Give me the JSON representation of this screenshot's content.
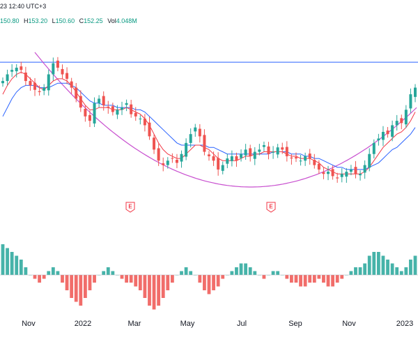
{
  "header": {
    "datetime_fragment": "23 12:40 UTC+3"
  },
  "ohlc": {
    "open_label": "",
    "open": "150.80",
    "high_label": "H",
    "high": "153.20",
    "low_label": "L",
    "low": "150.60",
    "close_label": "C",
    "close": "152.25",
    "vol_label": "Vol",
    "vol": "4.048M"
  },
  "colors": {
    "up": "#26a69a",
    "down": "#ef5350",
    "ma_fast": "#f23645",
    "ma_slow": "#2962ff",
    "arc": "#c84fcf",
    "hline": "#2962ff",
    "osc_pos": "#26a69a",
    "osc_neg": "#ef5350"
  },
  "chart_data": [
    {
      "type": "candlestick",
      "title": "",
      "x_axis_labels": [
        "Nov",
        "2022",
        "Mar",
        "May",
        "Jul",
        "Sep",
        "Nov",
        "2023"
      ],
      "earnings_markers": [
        "E",
        "E"
      ],
      "description_series": [
        {
          "name": "",
          "role": "price",
          "values": [
            128,
            131,
            133,
            134,
            133,
            128,
            126,
            124,
            123,
            125,
            131,
            136,
            134,
            131,
            129,
            125,
            120,
            116,
            112,
            110,
            118,
            120,
            117,
            116,
            114,
            115,
            116,
            118,
            113,
            112,
            111,
            108,
            103,
            97,
            92,
            90,
            92,
            93,
            91,
            95,
            100,
            104,
            107,
            103,
            96,
            94,
            92,
            88,
            90,
            93,
            94,
            92,
            95,
            97,
            94,
            96,
            97,
            99,
            95,
            96,
            98,
            97,
            94,
            93,
            93,
            92,
            94,
            93,
            90,
            88,
            86,
            87,
            85,
            84,
            86,
            87,
            88,
            86,
            86,
            90,
            95,
            100,
            102,
            105,
            104,
            108,
            110,
            109,
            115,
            122,
            125
          ]
        },
        {
          "name": "",
          "role": "ma_fast",
          "values": [
            122,
            126,
            129,
            131,
            132,
            131,
            129,
            127,
            125,
            124,
            126,
            128,
            129,
            129,
            128,
            126,
            123,
            120,
            117,
            115,
            115,
            116,
            116,
            116,
            115,
            115,
            115,
            116,
            115,
            114,
            113,
            111,
            108,
            104,
            100,
            97,
            95,
            94,
            93,
            93,
            95,
            97,
            99,
            99,
            98,
            97,
            95,
            93,
            92,
            92,
            92,
            92,
            93,
            94,
            94,
            95,
            95,
            96,
            96,
            96,
            96,
            96,
            95,
            94,
            94,
            93,
            93,
            93,
            92,
            91,
            89,
            88,
            87,
            86,
            86,
            86,
            86,
            86,
            86,
            87,
            89,
            92,
            95,
            98,
            100,
            102,
            104,
            105,
            107,
            110,
            114
          ]
        },
        {
          "name": "",
          "role": "ma_slow",
          "values": [
            112,
            116,
            120,
            123,
            125,
            126,
            126,
            126,
            125,
            125,
            125,
            126,
            127,
            127,
            127,
            126,
            125,
            123,
            121,
            119,
            118,
            118,
            117,
            117,
            117,
            116,
            116,
            116,
            116,
            115,
            115,
            114,
            112,
            110,
            108,
            106,
            104,
            102,
            100,
            99,
            99,
            99,
            99,
            99,
            99,
            98,
            98,
            97,
            96,
            95,
            95,
            95,
            95,
            95,
            95,
            95,
            95,
            95,
            95,
            96,
            96,
            96,
            96,
            95,
            95,
            95,
            94,
            94,
            93,
            93,
            92,
            91,
            90,
            89,
            89,
            88,
            88,
            88,
            88,
            88,
            89,
            90,
            91,
            93,
            95,
            97,
            98,
            100,
            102,
            104,
            107
          ]
        }
      ]
    },
    {
      "type": "bar",
      "title": "",
      "description": "Oscillator histogram below price panel, centered at zero",
      "values": [
        8,
        7,
        6,
        5,
        4,
        2,
        0,
        -1,
        -2,
        -1,
        1,
        2,
        1,
        -2,
        -4,
        -6,
        -7,
        -8,
        -6,
        -4,
        -2,
        0,
        1,
        2,
        1,
        0,
        -1,
        -2,
        -2,
        -3,
        -4,
        -6,
        -8,
        -9,
        -8,
        -6,
        -4,
        -2,
        0,
        1,
        2,
        1,
        0,
        -2,
        -4,
        -5,
        -4,
        -3,
        -1,
        0,
        1,
        2,
        3,
        3,
        2,
        1,
        0,
        -1,
        0,
        1,
        1,
        0,
        -1,
        -2,
        -2,
        -3,
        -3,
        -2,
        -2,
        -1,
        -2,
        -3,
        -3,
        -2,
        -1,
        0,
        1,
        2,
        2,
        3,
        5,
        6,
        6,
        5,
        4,
        3,
        2,
        1,
        2,
        4,
        5
      ]
    }
  ]
}
